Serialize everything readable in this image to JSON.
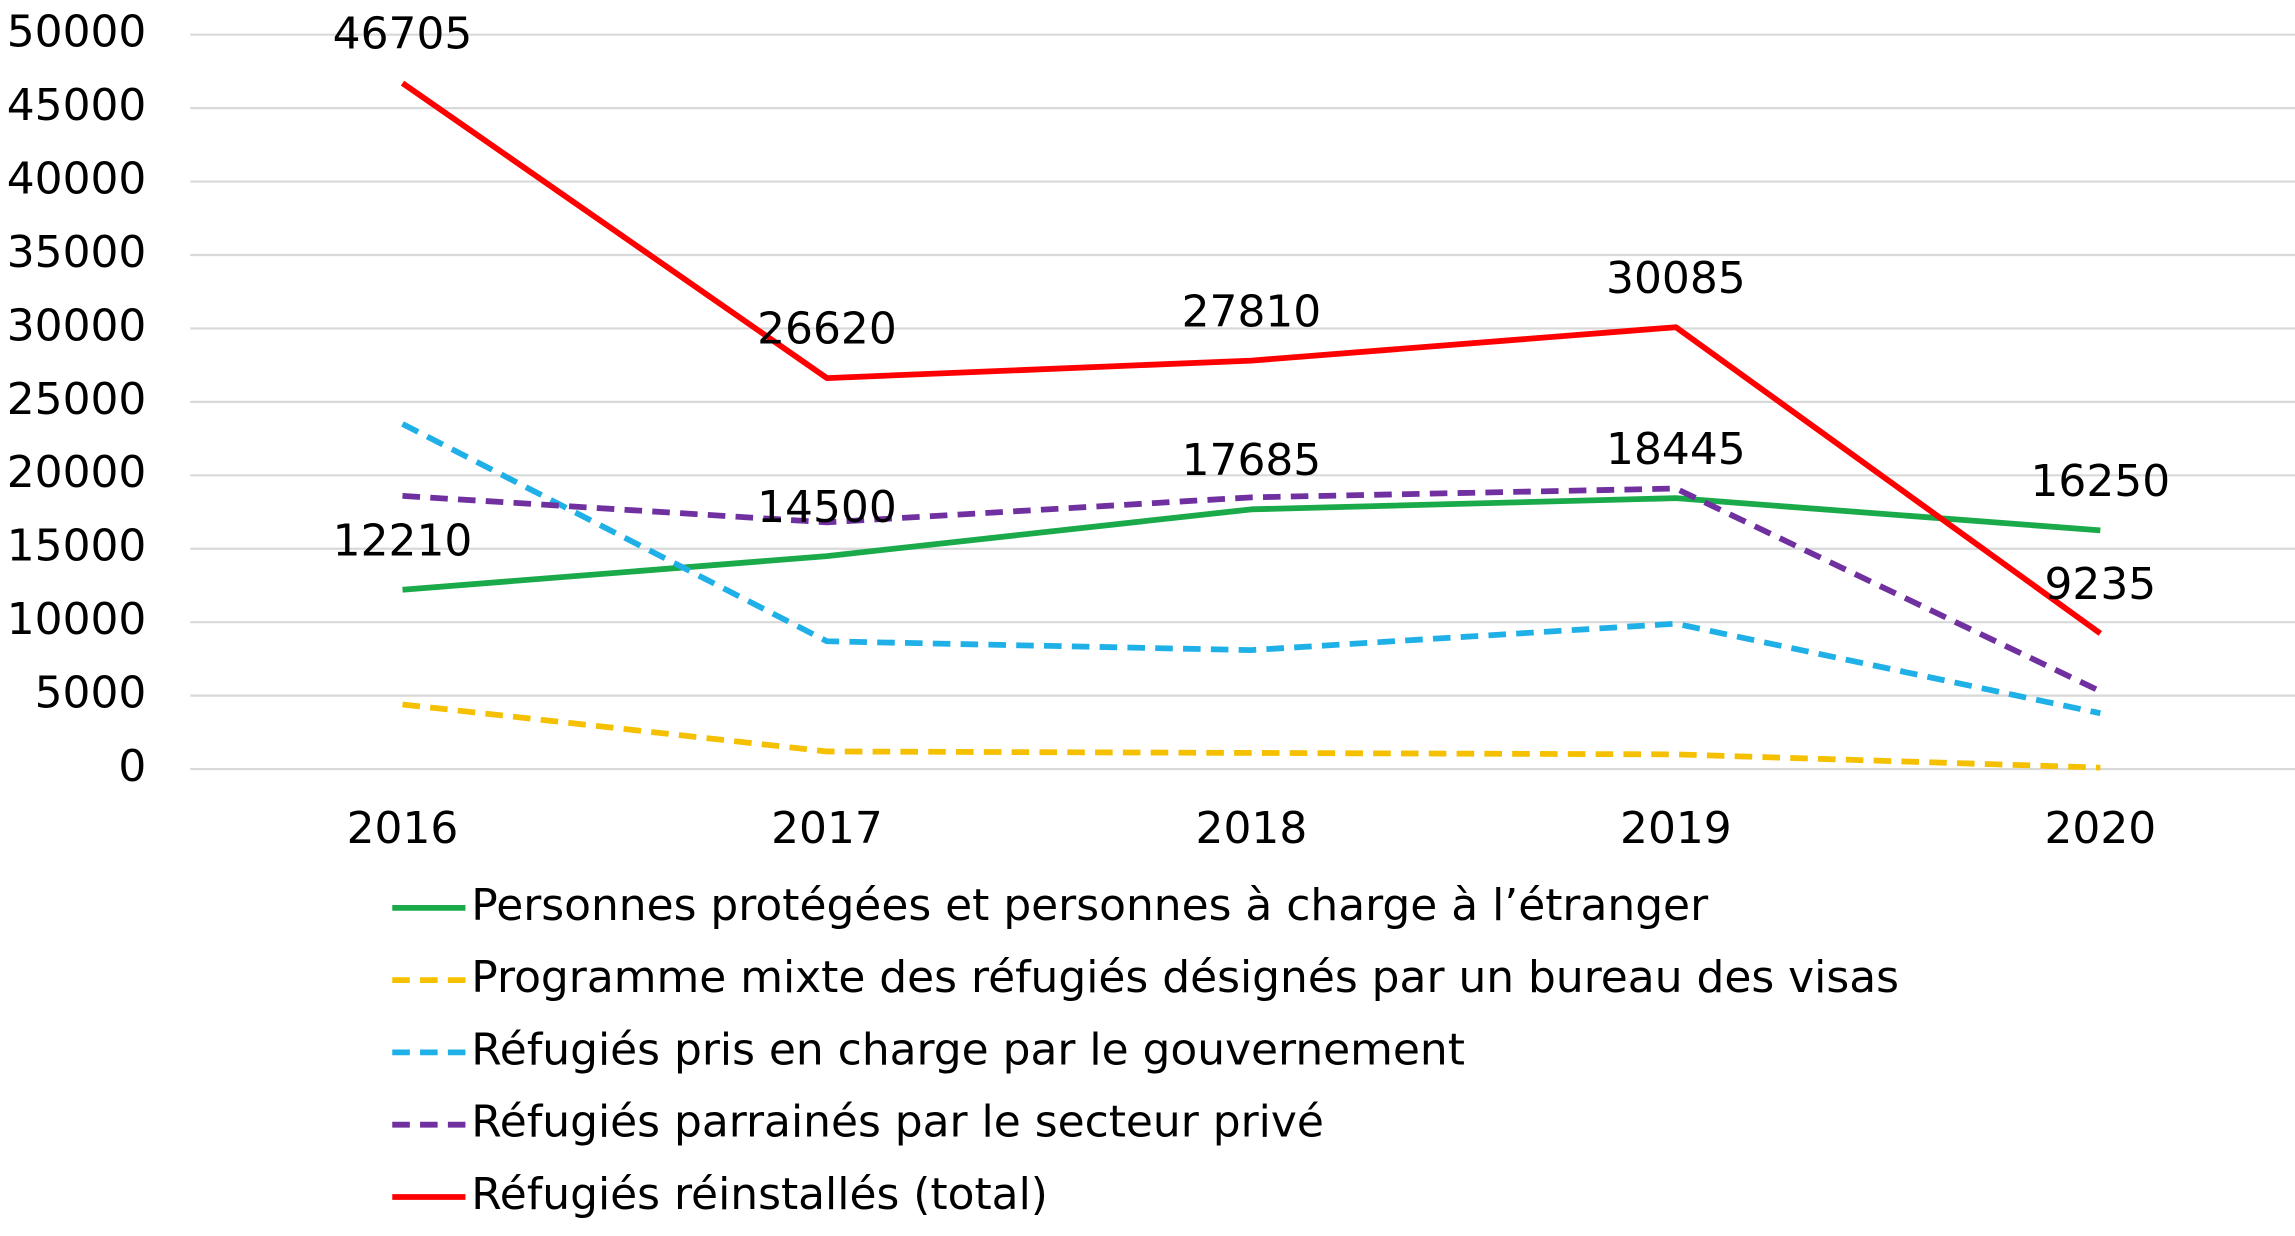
{
  "chart_data": {
    "type": "line",
    "categories": [
      "2016",
      "2017",
      "2018",
      "2019",
      "2020"
    ],
    "ylim": [
      0,
      50000
    ],
    "yticks": [
      0,
      5000,
      10000,
      15000,
      20000,
      25000,
      30000,
      35000,
      40000,
      45000,
      50000
    ],
    "grid": true,
    "legend": "bottom",
    "series": [
      {
        "name": "Personnes protégées et personnes à charge à l’étranger",
        "color": "#1aaa4a",
        "dash": false,
        "show_labels": true,
        "values": [
          12210,
          14500,
          17685,
          18445,
          16250
        ]
      },
      {
        "name": "Programme mixte des réfugiés désignés par un bureau des visas",
        "color": "#f5c000",
        "dash": true,
        "show_labels": false,
        "values": [
          4400,
          1200,
          1100,
          1000,
          100
        ]
      },
      {
        "name": "Réfugiés pris en charge par le gouvernement",
        "color": "#1fb0e8",
        "dash": true,
        "show_labels": false,
        "values": [
          23500,
          8700,
          8100,
          9900,
          3800
        ]
      },
      {
        "name": "Réfugiés parrainés par le secteur privé",
        "color": "#7030a0",
        "dash": true,
        "show_labels": false,
        "values": [
          18600,
          16800,
          18500,
          19100,
          5300
        ]
      },
      {
        "name": "Réfugiés réinstallés (total)",
        "color": "#ff0000",
        "dash": false,
        "show_labels": true,
        "values": [
          46705,
          26620,
          27810,
          30085,
          9235
        ]
      }
    ]
  }
}
